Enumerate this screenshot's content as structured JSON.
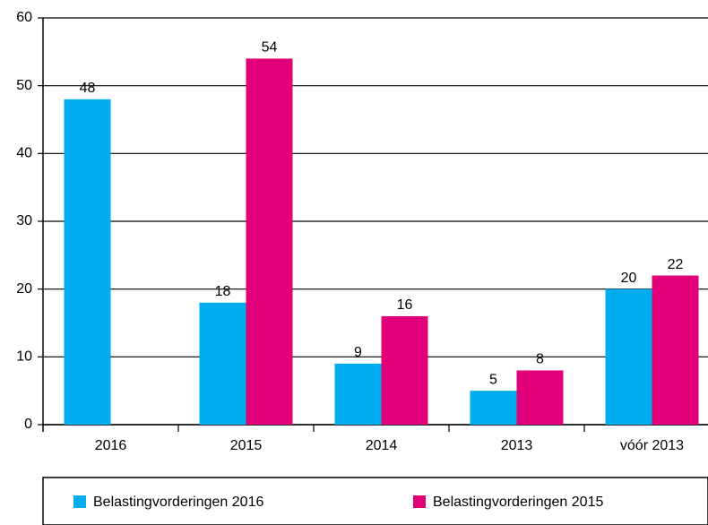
{
  "chart_data": {
    "type": "bar",
    "categories": [
      "2016",
      "2015",
      "2014",
      "2013",
      "vóór 2013"
    ],
    "series": [
      {
        "name": "Belastingvorderingen 2016",
        "color": "#00aeef",
        "values": [
          48,
          18,
          9,
          5,
          20
        ]
      },
      {
        "name": "Belastingvorderingen 2015",
        "color": "#e2007a",
        "values": [
          null,
          54,
          16,
          8,
          22
        ]
      }
    ],
    "ylim": [
      0,
      60
    ],
    "yticks": [
      0,
      10,
      20,
      30,
      40,
      50,
      60
    ],
    "grid": true
  }
}
